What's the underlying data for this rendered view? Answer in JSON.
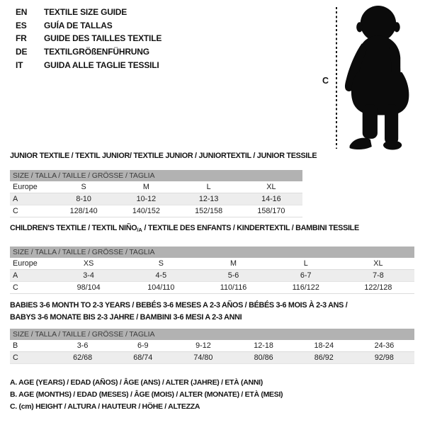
{
  "header": {
    "languages": [
      {
        "code": "EN",
        "label": "TEXTILE SIZE GUIDE"
      },
      {
        "code": "ES",
        "label": "GUÍA DE TALLAS"
      },
      {
        "code": "FR",
        "label": "GUIDE DES TAILLES TEXTILE"
      },
      {
        "code": "DE",
        "label": "TEXTILGRÖßENFÜHRUNG"
      },
      {
        "code": "IT",
        "label": "GUIDA ALLE TAGLIE TESSILI"
      }
    ]
  },
  "figure": {
    "measure_label": "C",
    "image": "toddler-silhouette",
    "silhouette_color": "#0b0b0b"
  },
  "tables": [
    {
      "title_lines": [
        [
          {
            "text": "JUNIOR TEXTILE / TEXTIL JUNIOR/ TEXTILE JUNIOR / JUNIORTEXTIL / JUNIOR TESSILE"
          }
        ]
      ],
      "size_header": "SIZE / TALLA / TAILLE / GRÖSSE / TAGLIA",
      "rows": [
        {
          "label": "Europe",
          "values": [
            "S",
            "M",
            "L",
            "XL"
          ]
        },
        {
          "label": "A",
          "values": [
            "8-10",
            "10-12",
            "12-13",
            "14-16"
          ]
        },
        {
          "label": "C",
          "values": [
            "128/140",
            "140/152",
            "152/158",
            "158/170"
          ]
        }
      ]
    },
    {
      "title_lines": [
        [
          {
            "text": "CHILDREN'S TEXTILE / TEXTIL NIÑO"
          },
          {
            "text": "/A",
            "sub": true
          },
          {
            "text": " / TEXTILE DES ENFANTS / KINDERTEXTIL / BAMBINI TESSILE"
          }
        ]
      ],
      "size_header": "SIZE / TALLA / TAILLE / GRÖSSE / TAGLIA",
      "rows": [
        {
          "label": "Europe",
          "values": [
            "XS",
            "S",
            "M",
            "L",
            "XL"
          ]
        },
        {
          "label": "A",
          "values": [
            "3-4",
            "4-5",
            "5-6",
            "6-7",
            "7-8"
          ]
        },
        {
          "label": "C",
          "values": [
            "98/104",
            "104/110",
            "110/116",
            "116/122",
            "122/128"
          ]
        }
      ]
    },
    {
      "title_lines": [
        [
          {
            "text": "BABIES 3-6 MONTH TO 2-3 YEARS / BEBÉS 3-6 MESES A 2-3 AÑOS / BÉBÉS 3-6 MOIS À 2-3 ANS /"
          }
        ],
        [
          {
            "text": "BABYS 3-6 MONATE BIS 2-3 JAHRE / BAMBINI 3-6 MESI A 2-3 ANNI"
          }
        ]
      ],
      "size_header": "SIZE / TALLA / TAILLE / GRÖSSE / TAGLIA",
      "rows": [
        {
          "label": "B",
          "values": [
            "3-6",
            "6-9",
            "9-12",
            "12-18",
            "18-24",
            "24-36"
          ]
        },
        {
          "label": "C",
          "values": [
            "62/68",
            "68/74",
            "74/80",
            "80/86",
            "86/92",
            "92/98"
          ]
        }
      ]
    }
  ],
  "footnotes": [
    "A. AGE (YEARS) / EDAD (AÑOS) / ÂGE (ANS) / ALTER (JAHRE) / ETÀ (ANNI)",
    "B. AGE (MONTHS) / EDAD (MESES) / ÂGE (MOIS) / ALTER (MONATE) / ETÀ (MESI)",
    "C. (cm) HEIGHT / ALTURA / HAUTEUR / HÖHE / ALTEZZA"
  ],
  "colors": {
    "bar_bg": "#b2b2b2",
    "bar_text": "#3c3c3c",
    "row_alt_bg": "#ededed",
    "text": "#1d1d1d"
  }
}
